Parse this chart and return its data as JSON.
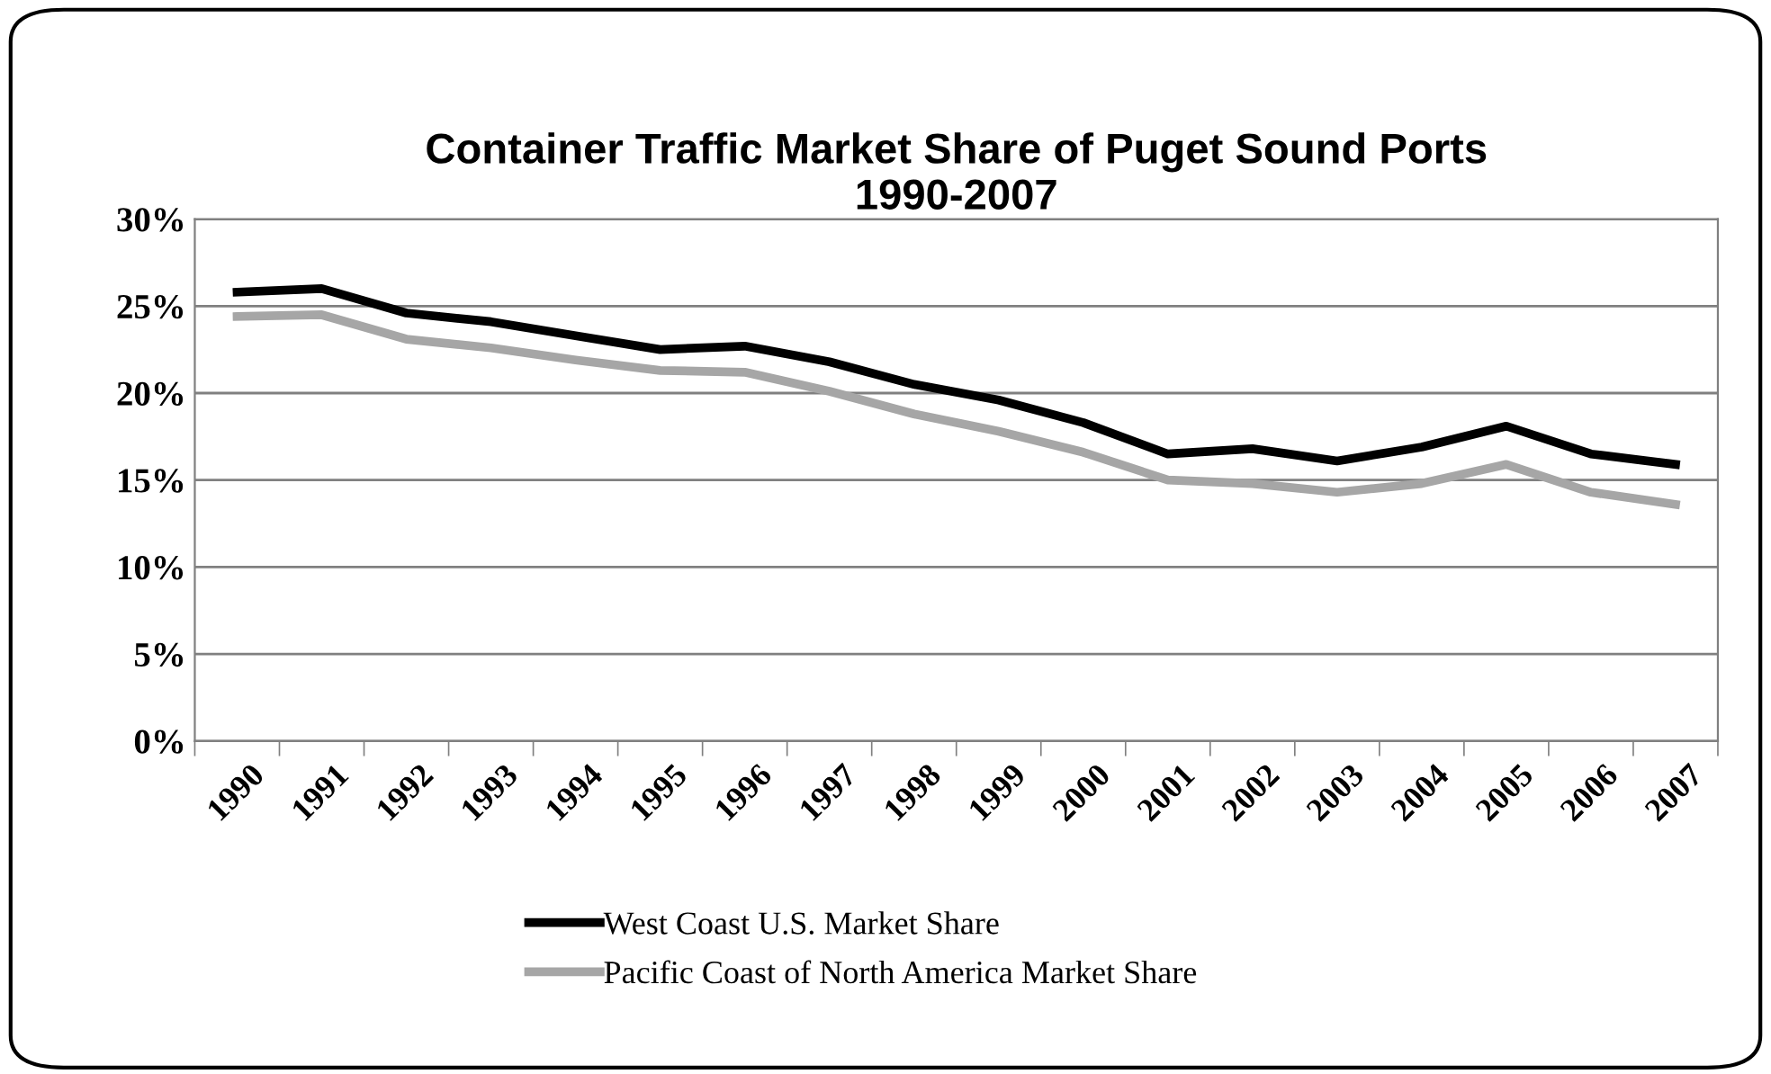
{
  "chart_data": {
    "type": "line",
    "title": "Container Traffic Market Share of Puget Sound Ports\n1990-2007",
    "categories": [
      "1990",
      "1991",
      "1992",
      "1993",
      "1994",
      "1995",
      "1996",
      "1997",
      "1998",
      "1999",
      "2000",
      "2001",
      "2002",
      "2003",
      "2004",
      "2005",
      "2006",
      "2007"
    ],
    "series": [
      {
        "name": "West Coast U.S. Market Share",
        "color": "#000000",
        "values": [
          25.8,
          26.0,
          24.6,
          24.1,
          23.3,
          22.5,
          22.7,
          21.8,
          20.5,
          19.6,
          18.3,
          16.5,
          16.8,
          16.1,
          16.9,
          18.1,
          16.5,
          15.9
        ]
      },
      {
        "name": "Pacific Coast of North America Market Share",
        "color": "#a6a6a6",
        "values": [
          24.4,
          24.5,
          23.1,
          22.6,
          21.9,
          21.3,
          21.2,
          20.1,
          18.8,
          17.8,
          16.6,
          15.0,
          14.8,
          14.3,
          14.8,
          15.9,
          14.3,
          13.6
        ]
      }
    ],
    "ylim": [
      0,
      30
    ],
    "yticks": [
      {
        "value": 0,
        "label": "0%"
      },
      {
        "value": 5,
        "label": "5%"
      },
      {
        "value": 10,
        "label": "10%"
      },
      {
        "value": 15,
        "label": "15%"
      },
      {
        "value": 20,
        "label": "20%"
      },
      {
        "value": 25,
        "label": "25%"
      },
      {
        "value": 30,
        "label": "30%"
      }
    ],
    "grid": "y",
    "legend": "bottom",
    "marker": "none",
    "line_style": "solid"
  }
}
